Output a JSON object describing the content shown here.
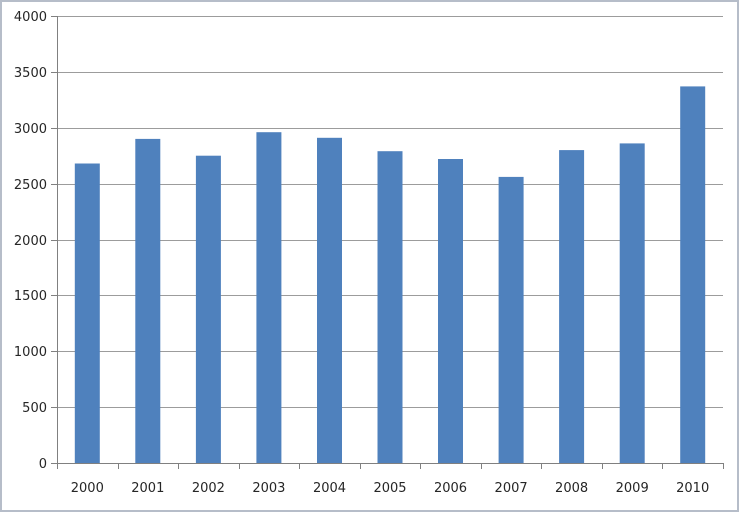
{
  "chart_data": {
    "type": "bar",
    "title": "",
    "xlabel": "",
    "ylabel": "",
    "categories": [
      "2000",
      "2001",
      "2002",
      "2003",
      "2004",
      "2005",
      "2006",
      "2007",
      "2008",
      "2009",
      "2010"
    ],
    "values": [
      2680,
      2900,
      2750,
      2960,
      2910,
      2790,
      2720,
      2560,
      2800,
      2860,
      3370
    ],
    "ylim": [
      0,
      4000
    ],
    "ytick_step": 500,
    "yticks": [
      "0",
      "500",
      "1000",
      "1500",
      "2000",
      "2500",
      "3000",
      "3500",
      "4000"
    ],
    "grid": true,
    "legend": false,
    "legend_position": "none",
    "colors": {
      "bar": "#4f81bd",
      "gridline": "#9c9c9c",
      "axis": "#808080",
      "tick": "#808080",
      "text": "#262626",
      "frame_border": "#b6bdc9",
      "background": "#ffffff"
    }
  }
}
